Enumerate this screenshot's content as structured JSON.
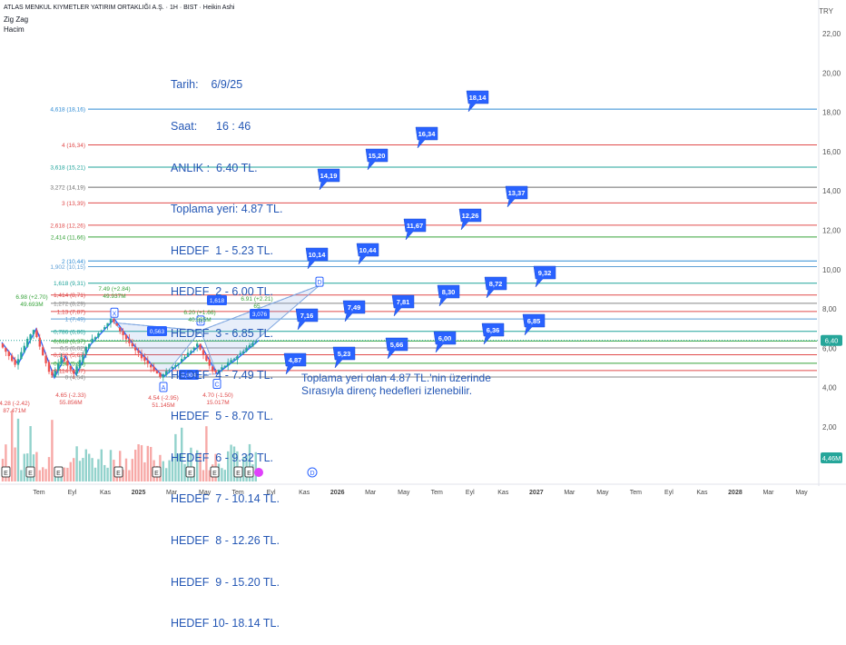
{
  "header": {
    "title": "ATLAS MENKUL KIYMETLER YATIRIM ORTAKLIĞI A.Ş. · 1H · BIST · Heikin Ashi",
    "indicator_1": "Zig Zag",
    "indicator_2": "Hacim",
    "currency": "TRY"
  },
  "info": {
    "lines": [
      "Tarih:    6/9/25",
      "Saat:      16 : 46",
      "ANLIK :  6.40 TL.",
      "Toplama yeri: 4.87 TL.",
      "HEDEF  1 - 5.23 TL.",
      "HEDEF  2 - 6.00 TL.",
      "HEDEF  3 - 6.85 TL.",
      "HEDEF  4 - 7.49 TL.",
      "HEDEF  5 - 8.70 TL.",
      "HEDEF  6 - 9.32 TL.",
      "HEDEF  7 - 10.14 TL.",
      "HEDEF  8 - 12.26 TL.",
      "HEDEF  9 - 15.20 TL.",
      "HEDEF 10- 18.14 TL."
    ],
    "note_line1": "Toplama yeri olan 4.87 TL.'nin üzerinde",
    "note_line2": "Sırasıyla direnç hedefleri izlenebilir."
  },
  "chart_data": {
    "type": "candlestick",
    "y_axis": {
      "ticks": [
        2,
        4,
        6,
        8,
        10,
        12,
        14,
        16,
        18,
        20,
        22
      ],
      "tick_labels": [
        "2,00",
        "4,00",
        "6,00",
        "8,00",
        "10,00",
        "12,00",
        "14,00",
        "16,00",
        "18,00",
        "20,00",
        "22,00"
      ],
      "ylim": [
        0,
        23.2
      ]
    },
    "x_axis": {
      "labels": [
        "Tem",
        "Eyl",
        "Kas",
        "2025",
        "Mar",
        "May",
        "Tem",
        "Eyl",
        "Kas",
        "2026",
        "Mar",
        "May",
        "Tem",
        "Eyl",
        "Kas",
        "2027",
        "Mar",
        "May",
        "Tem",
        "Eyl",
        "Kas",
        "2028",
        "Mar",
        "May"
      ],
      "bold": [
        "2025",
        "2026",
        "2027",
        "2028"
      ]
    },
    "current_price": {
      "label": "6,40",
      "value": 6.4,
      "color": "#26a69a"
    },
    "volume_badge": {
      "label": "4,46M",
      "color": "#26a69a"
    },
    "fib_levels": [
      {
        "label": "4,618 (18,16)",
        "value": 18.16,
        "color": "#2e8bd4"
      },
      {
        "label": "4 (16,34)",
        "value": 16.34,
        "color": "#e04b4b"
      },
      {
        "label": "3,618 (15,21)",
        "value": 15.21,
        "color": "#1fa39a"
      },
      {
        "label": "3,272 (14,19)",
        "value": 14.19,
        "color": "#6d6d6d"
      },
      {
        "label": "3 (13,39)",
        "value": 13.39,
        "color": "#e04b4b"
      },
      {
        "label": "2,618 (12,26)",
        "value": 12.26,
        "color": "#e04b4b"
      },
      {
        "label": "2,414 (11,66)",
        "value": 11.66,
        "color": "#37a33a"
      },
      {
        "label": "2 (10,44)",
        "value": 10.44,
        "color": "#2e8bd4"
      },
      {
        "label": "1,902 (10,15)",
        "value": 10.15,
        "color": "#5e9fd6"
      },
      {
        "label": "1,618 (9,31)",
        "value": 9.31,
        "color": "#1fa39a"
      },
      {
        "label": "1,414 (8,71)",
        "value": 8.71,
        "color": "#e04b4b"
      },
      {
        "label": "1,272 (8,29)",
        "value": 8.29,
        "color": "#888888"
      },
      {
        "label": "1,13 (7,87)",
        "value": 7.87,
        "color": "#e04b4b"
      },
      {
        "label": "1 (7,49)",
        "value": 7.49,
        "color": "#5e9fd6"
      },
      {
        "label": "0,786 (6,86)",
        "value": 6.86,
        "color": "#1fa39a"
      },
      {
        "label": "0,618 (6,37)",
        "value": 6.37,
        "color": "#37a33a"
      },
      {
        "label": "0,5 (6,02)",
        "value": 6.02,
        "color": "#888888"
      },
      {
        "label": "0,382 (5,67)",
        "value": 5.67,
        "color": "#e04b4b"
      },
      {
        "label": "0,236 (5,24)",
        "value": 5.24,
        "color": "#37a33a"
      },
      {
        "label": "0,114 (4,87)",
        "value": 4.87,
        "color": "#e04b4b"
      },
      {
        "label": "0 (4,54)",
        "value": 4.54,
        "color": "#888888"
      }
    ],
    "targets": [
      {
        "label": "4,87",
        "value": 4.87
      },
      {
        "label": "5,23",
        "value": 5.23
      },
      {
        "label": "5,66",
        "value": 5.66
      },
      {
        "label": "6,00",
        "value": 6.0
      },
      {
        "label": "6,36",
        "value": 6.36
      },
      {
        "label": "6,85",
        "value": 6.85
      },
      {
        "label": "7,16",
        "value": 7.16
      },
      {
        "label": "7,49",
        "value": 7.49
      },
      {
        "label": "7,81",
        "value": 7.81
      },
      {
        "label": "8,30",
        "value": 8.3
      },
      {
        "label": "8,72",
        "value": 8.72
      },
      {
        "label": "9,32",
        "value": 9.32
      },
      {
        "label": "10,14",
        "value": 10.14
      },
      {
        "label": "10,44",
        "value": 10.44
      },
      {
        "label": "11,67",
        "value": 11.67
      },
      {
        "label": "12,26",
        "value": 12.26
      },
      {
        "label": "13,37",
        "value": 13.37
      },
      {
        "label": "14,19",
        "value": 14.19
      },
      {
        "label": "15,20",
        "value": 15.2
      },
      {
        "label": "16,34",
        "value": 16.34
      },
      {
        "label": "18,14",
        "value": 18.14
      }
    ],
    "pattern_points": [
      {
        "label": "X",
        "value": 7.3
      },
      {
        "label": "A",
        "value": 4.54
      },
      {
        "label": "B",
        "value": 6.9
      },
      {
        "label": "C",
        "value": 4.7
      },
      {
        "label": "D",
        "value": 9.2
      }
    ],
    "pattern_ratios": [
      "0,563",
      "1,618",
      "0,904",
      "3,076"
    ],
    "zigzag_labels": [
      {
        "text": "6.98 (+2.70)",
        "sub": "49.693M",
        "color": "#37a33a"
      },
      {
        "text": "4.28 (-2.42)",
        "sub": "87.471M",
        "color": "#e04b4b"
      },
      {
        "text": "4.65 (-2.33)",
        "sub": "55.856M",
        "color": "#e04b4b"
      },
      {
        "text": "7.49 (+2.84)",
        "sub": "49.937M",
        "color": "#37a33a"
      },
      {
        "text": "4.54 (-2.95)",
        "sub": "51.145M",
        "color": "#e04b4b"
      },
      {
        "text": "6.20 (+1.66)",
        "sub": "40.895M",
        "color": "#37a33a"
      },
      {
        "text": "4.70 (-1.50)",
        "sub": "15.017M",
        "color": "#e04b4b"
      },
      {
        "text": "6.91 (+2.21)",
        "sub": "65",
        "color": "#37a33a"
      }
    ],
    "event_markers": [
      "E",
      "E",
      "E",
      "E",
      "E",
      "E",
      "E",
      "E",
      "E",
      "E"
    ],
    "dividend_marker": "D"
  }
}
